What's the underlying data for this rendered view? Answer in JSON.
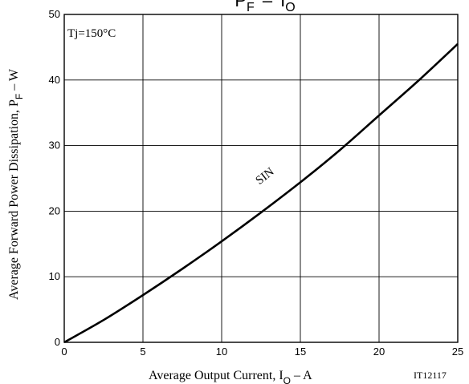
{
  "chart_data": {
    "type": "line",
    "title_parts": {
      "main": "P",
      "main_sub": "F",
      "dash": "–",
      "var": "I",
      "var_sub": "O"
    },
    "annotation": "Tj=150°C",
    "series": [
      {
        "name": "SIN",
        "x": [
          0,
          2.5,
          5,
          7.5,
          10,
          12.5,
          15,
          17.5,
          20,
          22.5,
          25
        ],
        "y": [
          0,
          3.4,
          7.2,
          11.2,
          15.4,
          19.8,
          24.4,
          29.3,
          34.6,
          39.9,
          45.5
        ]
      }
    ],
    "xlabel": {
      "text": "Average Output Current, I",
      "sub": "O",
      "unit": " – A"
    },
    "ylabel": {
      "text": "Average Forward Power Dissipation, P",
      "sub": "F",
      "unit": " – W"
    },
    "xlim": [
      0,
      25
    ],
    "ylim": [
      0,
      50
    ],
    "xticks": [
      0,
      5,
      10,
      15,
      20,
      25
    ],
    "yticks": [
      0,
      10,
      20,
      30,
      40,
      50
    ],
    "grid": true,
    "figure_code": "IT12117"
  }
}
